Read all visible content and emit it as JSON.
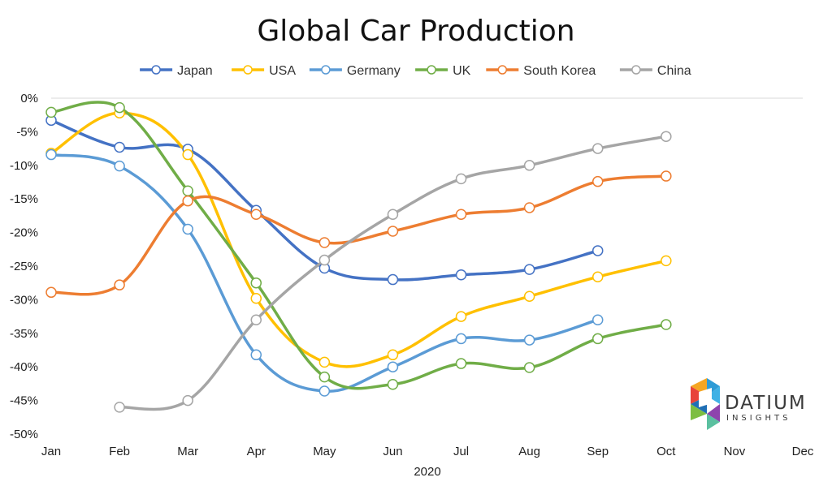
{
  "chart_data": {
    "type": "line",
    "title": "Global Car Production",
    "xlabel": "2020",
    "ylabel": "",
    "categories": [
      "Jan",
      "Feb",
      "Mar",
      "Apr",
      "May",
      "Jun",
      "Jul",
      "Aug",
      "Sep",
      "Oct",
      "Nov",
      "Dec"
    ],
    "y_tick_labels": [
      "0%",
      "-5%",
      "-10%",
      "-15%",
      "-20%",
      "-25%",
      "-30%",
      "-35%",
      "-40%",
      "-45%",
      "-50%"
    ],
    "y_ticks": [
      0,
      -5,
      -10,
      -15,
      -20,
      -25,
      -30,
      -35,
      -40,
      -45,
      -50
    ],
    "ylim": [
      -50,
      0
    ],
    "grid": "top baseline only",
    "legend_position": "top",
    "smooth": true,
    "series": [
      {
        "name": "Japan",
        "color": "#4472C4",
        "values": [
          -3.3,
          -7.3,
          -7.6,
          -16.7,
          -25.3,
          -27.0,
          -26.3,
          -25.5,
          -22.7,
          null,
          null,
          null
        ]
      },
      {
        "name": "USA",
        "color": "#FFC000",
        "values": [
          -8.2,
          -2.2,
          -8.4,
          -29.8,
          -39.3,
          -38.2,
          -32.5,
          -29.5,
          -26.6,
          -24.2,
          null,
          null
        ]
      },
      {
        "name": "Germany",
        "color": "#5B9BD5",
        "values": [
          -8.4,
          -10.1,
          -19.5,
          -38.2,
          -43.6,
          -40.0,
          -35.8,
          -36.0,
          -33.0,
          null,
          null,
          null
        ]
      },
      {
        "name": "UK",
        "color": "#70AD47",
        "values": [
          -2.1,
          -1.4,
          -13.8,
          -27.5,
          -41.5,
          -42.6,
          -39.5,
          -40.1,
          -35.8,
          -33.7,
          null,
          null
        ]
      },
      {
        "name": "South Korea",
        "color": "#ED7D31",
        "values": [
          -28.9,
          -27.8,
          -15.3,
          -17.3,
          -21.5,
          -19.8,
          -17.3,
          -16.3,
          -12.4,
          -11.6,
          null,
          null
        ]
      },
      {
        "name": "China",
        "color": "#A5A5A5",
        "values": [
          null,
          -46.0,
          -45.0,
          -33.0,
          -24.1,
          -17.3,
          -12.0,
          -10.0,
          -7.5,
          -5.7,
          null,
          null
        ]
      }
    ]
  },
  "logo": {
    "main": "DATIUM",
    "sub": "INSIGHTS"
  }
}
